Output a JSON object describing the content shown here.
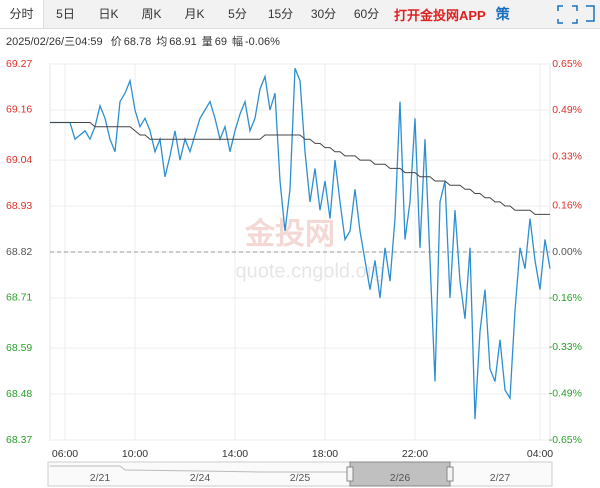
{
  "tabs": [
    "分时",
    "5日",
    "日K",
    "周K",
    "月K",
    "5分",
    "15分",
    "30分",
    "60分"
  ],
  "app_link": "打开金投网APP",
  "strategy_icon": "策",
  "info": {
    "datetime": "2025/02/26/三04:59",
    "items": [
      {
        "label": "价",
        "value": "68.78"
      },
      {
        "label": "均",
        "value": "68.91"
      },
      {
        "label": "量",
        "value": "69"
      },
      {
        "label": "幅",
        "value": "-0.06%"
      }
    ]
  },
  "watermark": {
    "logo": "金投网",
    "url": "quote.cngold.org"
  },
  "navigator": {
    "labels": [
      "2/21",
      "2/24",
      "2/25",
      "2/26",
      "2/27"
    ],
    "selected": 3
  },
  "chart_data": {
    "type": "line",
    "categories": [
      null,
      null,
      null,
      "06:00",
      null,
      null,
      null,
      null,
      null,
      null,
      null,
      null,
      null,
      null,
      null,
      null,
      null,
      "10:00",
      null,
      null,
      null,
      null,
      null,
      null,
      null,
      null,
      null,
      null,
      null,
      null,
      null,
      null,
      null,
      null,
      null,
      null,
      null,
      "14:00",
      null,
      null,
      null,
      null,
      null,
      null,
      null,
      null,
      null,
      null,
      null,
      null,
      null,
      null,
      null,
      null,
      null,
      "18:00",
      null,
      null,
      null,
      null,
      null,
      null,
      null,
      null,
      null,
      null,
      null,
      null,
      null,
      null,
      null,
      null,
      null,
      "22:00",
      null,
      null,
      null,
      null,
      null,
      null,
      null,
      null,
      null,
      null,
      null,
      null,
      null,
      null,
      null,
      null,
      null,
      null,
      null,
      null,
      null,
      null,
      null,
      null,
      "04:00",
      null,
      null
    ],
    "series": [
      {
        "name": "价",
        "color": "#2e8fd0",
        "values": [
          69.13,
          69.13,
          69.13,
          69.13,
          69.13,
          69.09,
          69.1,
          69.11,
          69.09,
          69.12,
          69.17,
          69.14,
          69.09,
          69.06,
          69.18,
          69.2,
          69.23,
          69.16,
          69.12,
          69.14,
          69.11,
          69.06,
          69.09,
          69.0,
          69.05,
          69.11,
          69.04,
          69.09,
          69.06,
          69.1,
          69.14,
          69.16,
          69.18,
          69.14,
          69.09,
          69.12,
          69.06,
          69.11,
          69.15,
          69.18,
          69.11,
          69.14,
          69.21,
          69.24,
          69.16,
          69.2,
          68.99,
          68.87,
          68.97,
          69.26,
          69.23,
          69.06,
          68.94,
          69.02,
          68.92,
          68.99,
          68.9,
          69.04,
          68.94,
          68.85,
          68.87,
          68.97,
          68.87,
          68.8,
          68.73,
          68.8,
          68.71,
          68.83,
          68.75,
          68.9,
          69.18,
          68.85,
          68.94,
          69.14,
          68.83,
          69.09,
          68.8,
          68.51,
          68.94,
          68.99,
          68.71,
          68.92,
          68.75,
          68.66,
          68.83,
          68.42,
          68.63,
          68.73,
          68.54,
          68.51,
          68.61,
          68.49,
          68.47,
          68.68,
          68.83,
          68.78,
          68.9,
          68.8,
          68.73,
          68.85,
          68.78
        ]
      },
      {
        "name": "均",
        "color": "#444444",
        "values": [
          69.13,
          69.13,
          69.13,
          69.13,
          69.13,
          69.13,
          69.13,
          69.13,
          69.13,
          69.12,
          69.12,
          69.12,
          69.12,
          69.12,
          69.12,
          69.12,
          69.12,
          69.11,
          69.1,
          69.1,
          69.09,
          69.09,
          69.09,
          69.09,
          69.09,
          69.09,
          69.09,
          69.09,
          69.09,
          69.09,
          69.09,
          69.09,
          69.09,
          69.09,
          69.09,
          69.09,
          69.09,
          69.09,
          69.09,
          69.09,
          69.09,
          69.09,
          69.09,
          69.1,
          69.1,
          69.1,
          69.1,
          69.1,
          69.1,
          69.1,
          69.1,
          69.09,
          69.09,
          69.08,
          69.08,
          69.07,
          69.07,
          69.06,
          69.06,
          69.05,
          69.05,
          69.05,
          69.04,
          69.04,
          69.04,
          69.03,
          69.03,
          69.03,
          69.02,
          69.02,
          69.02,
          69.01,
          69.01,
          69.01,
          69.0,
          69.0,
          69.0,
          68.99,
          68.99,
          68.99,
          68.98,
          68.98,
          68.98,
          68.97,
          68.97,
          68.96,
          68.96,
          68.95,
          68.95,
          68.94,
          68.94,
          68.93,
          68.93,
          68.92,
          68.92,
          68.92,
          68.92,
          68.91,
          68.91,
          68.91,
          68.91
        ]
      }
    ],
    "ylim": [
      68.37,
      69.27
    ],
    "yticks": [
      69.27,
      69.16,
      69.04,
      68.93,
      68.82,
      68.71,
      68.59,
      68.48,
      68.37
    ],
    "y2lim": [
      -0.65,
      0.65
    ],
    "y2ticks": [
      {
        "value": 0.65,
        "label": "0.65%"
      },
      {
        "value": 0.49,
        "label": "0.49%"
      },
      {
        "value": 0.33,
        "label": "0.33%"
      },
      {
        "value": 0.16,
        "label": "0.16%"
      },
      {
        "value": 0,
        "label": "0.00%"
      },
      {
        "value": -0.16,
        "label": "-0.16%"
      },
      {
        "value": -0.33,
        "label": "-0.33%"
      },
      {
        "value": -0.49,
        "label": "-0.49%"
      },
      {
        "value": -0.65,
        "label": "-0.65%"
      }
    ],
    "up_color": "#e0302a",
    "down_color": "#2aa02a",
    "flat_color": "#555555",
    "grid": true
  }
}
